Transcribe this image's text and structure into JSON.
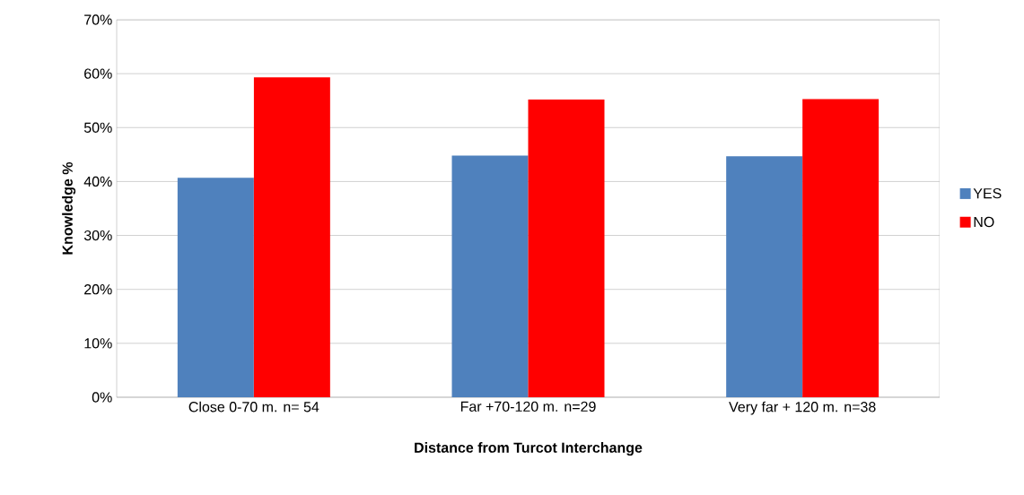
{
  "chart_data": {
    "type": "bar",
    "xlabel": "Distance from Turcot Interchange",
    "ylabel": "Knowledge %",
    "categories": [
      "Close 0-70 m. n= 54",
      "Far +70-120 m.  n=29",
      "Very far + 120 m. n=38"
    ],
    "series": [
      {
        "name": "YES",
        "color": "#4f81bd",
        "values": [
          40.7,
          44.8,
          44.7
        ]
      },
      {
        "name": "NO",
        "color": "#ff0000",
        "values": [
          59.3,
          55.2,
          55.3
        ]
      }
    ],
    "ylim": [
      0,
      70
    ],
    "yticks": [
      {
        "value": 0,
        "label": "0%"
      },
      {
        "value": 10,
        "label": "10%"
      },
      {
        "value": 20,
        "label": "20%"
      },
      {
        "value": 30,
        "label": "30%"
      },
      {
        "value": 40,
        "label": "40%"
      },
      {
        "value": 50,
        "label": "50%"
      },
      {
        "value": 60,
        "label": "60%"
      },
      {
        "value": 70,
        "label": "70%"
      }
    ],
    "grid": "y",
    "legend": "right"
  }
}
